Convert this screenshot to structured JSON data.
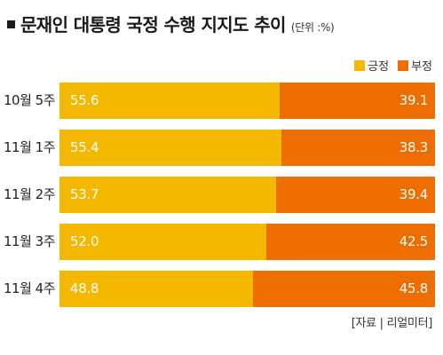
{
  "title": "문재인 대통령 국정 수행 지지도 추이",
  "subtitle": "(단위 :%)",
  "source": "[자료 | 리얼미터]",
  "colors": {
    "positive": "#f5b800",
    "negative": "#ee6d00",
    "bullet": "#1a1a1a"
  },
  "legend": [
    {
      "label": "긍정",
      "color": "#f5b800"
    },
    {
      "label": "부정",
      "color": "#ee6d00"
    }
  ],
  "chart_data": {
    "type": "bar",
    "orientation": "horizontal",
    "stacked": true,
    "title": "문재인 대통령 국정 수행 지지도 추이",
    "unit": "(단위 :%)",
    "categories": [
      "10월 5주",
      "11월 1주",
      "11월 2주",
      "11월 3주",
      "11월 4주"
    ],
    "series": [
      {
        "name": "긍정",
        "values": [
          55.6,
          55.4,
          53.7,
          52.0,
          48.8
        ],
        "labels": [
          "55.6",
          "55.4",
          "53.7",
          "52.0",
          "48.8"
        ]
      },
      {
        "name": "부정",
        "values": [
          39.1,
          38.3,
          39.4,
          42.5,
          45.8
        ],
        "labels": [
          "39.1",
          "38.3",
          "39.4",
          "42.5",
          "45.8"
        ]
      }
    ],
    "legend_position": "top-right",
    "grid": false
  }
}
